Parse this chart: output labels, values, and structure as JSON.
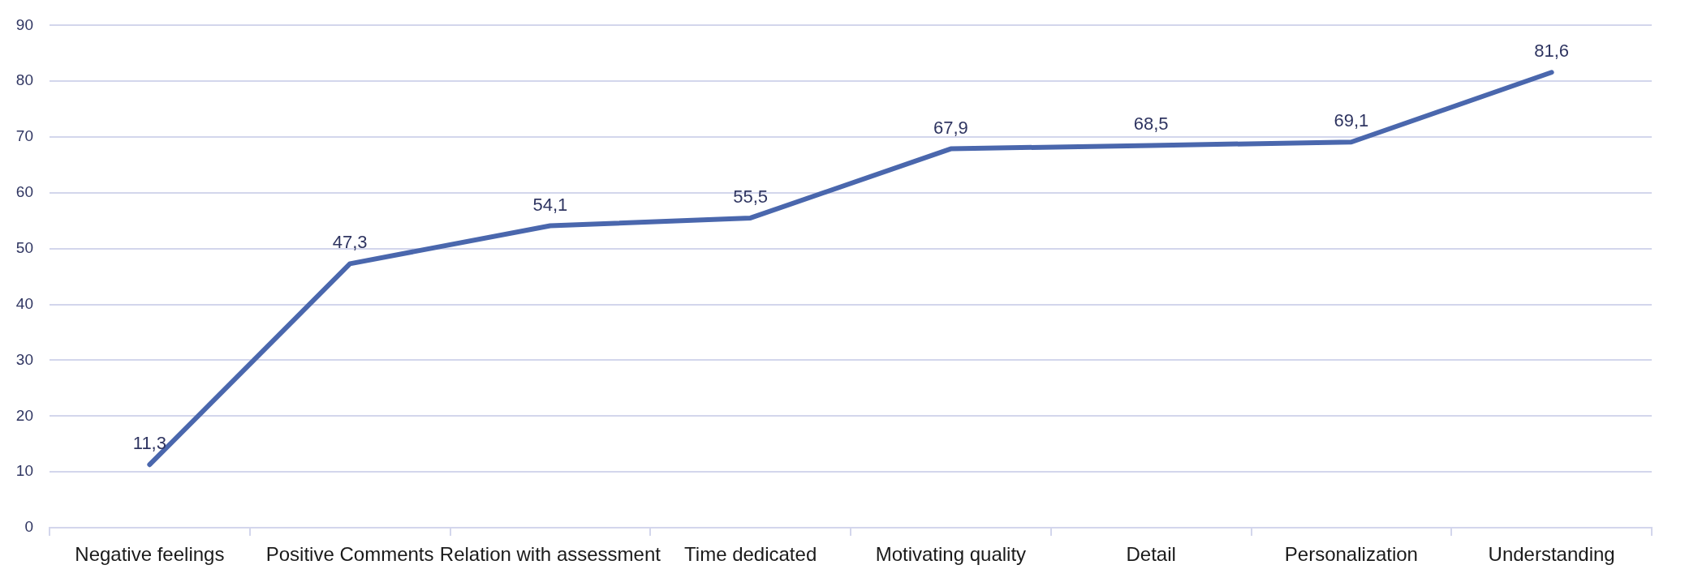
{
  "chart_data": {
    "type": "line",
    "categories": [
      "Negative feelings",
      "Positive Comments",
      "Relation with assessment",
      "Time dedicated",
      "Motivating quality",
      "Detail",
      "Personalization",
      "Understanding"
    ],
    "values": [
      11.3,
      47.3,
      54.1,
      55.5,
      67.9,
      68.5,
      69.1,
      81.6
    ],
    "value_labels": [
      "11,3",
      "47,3",
      "54,1",
      "55,5",
      "67,9",
      "68,5",
      "69,1",
      "81,6"
    ],
    "color": "#4a67ad",
    "ylim": [
      0,
      90
    ],
    "yticks": [
      0,
      10,
      20,
      30,
      40,
      50,
      60,
      70,
      80,
      90
    ],
    "grid": "y",
    "marker": "none",
    "legend": false
  }
}
